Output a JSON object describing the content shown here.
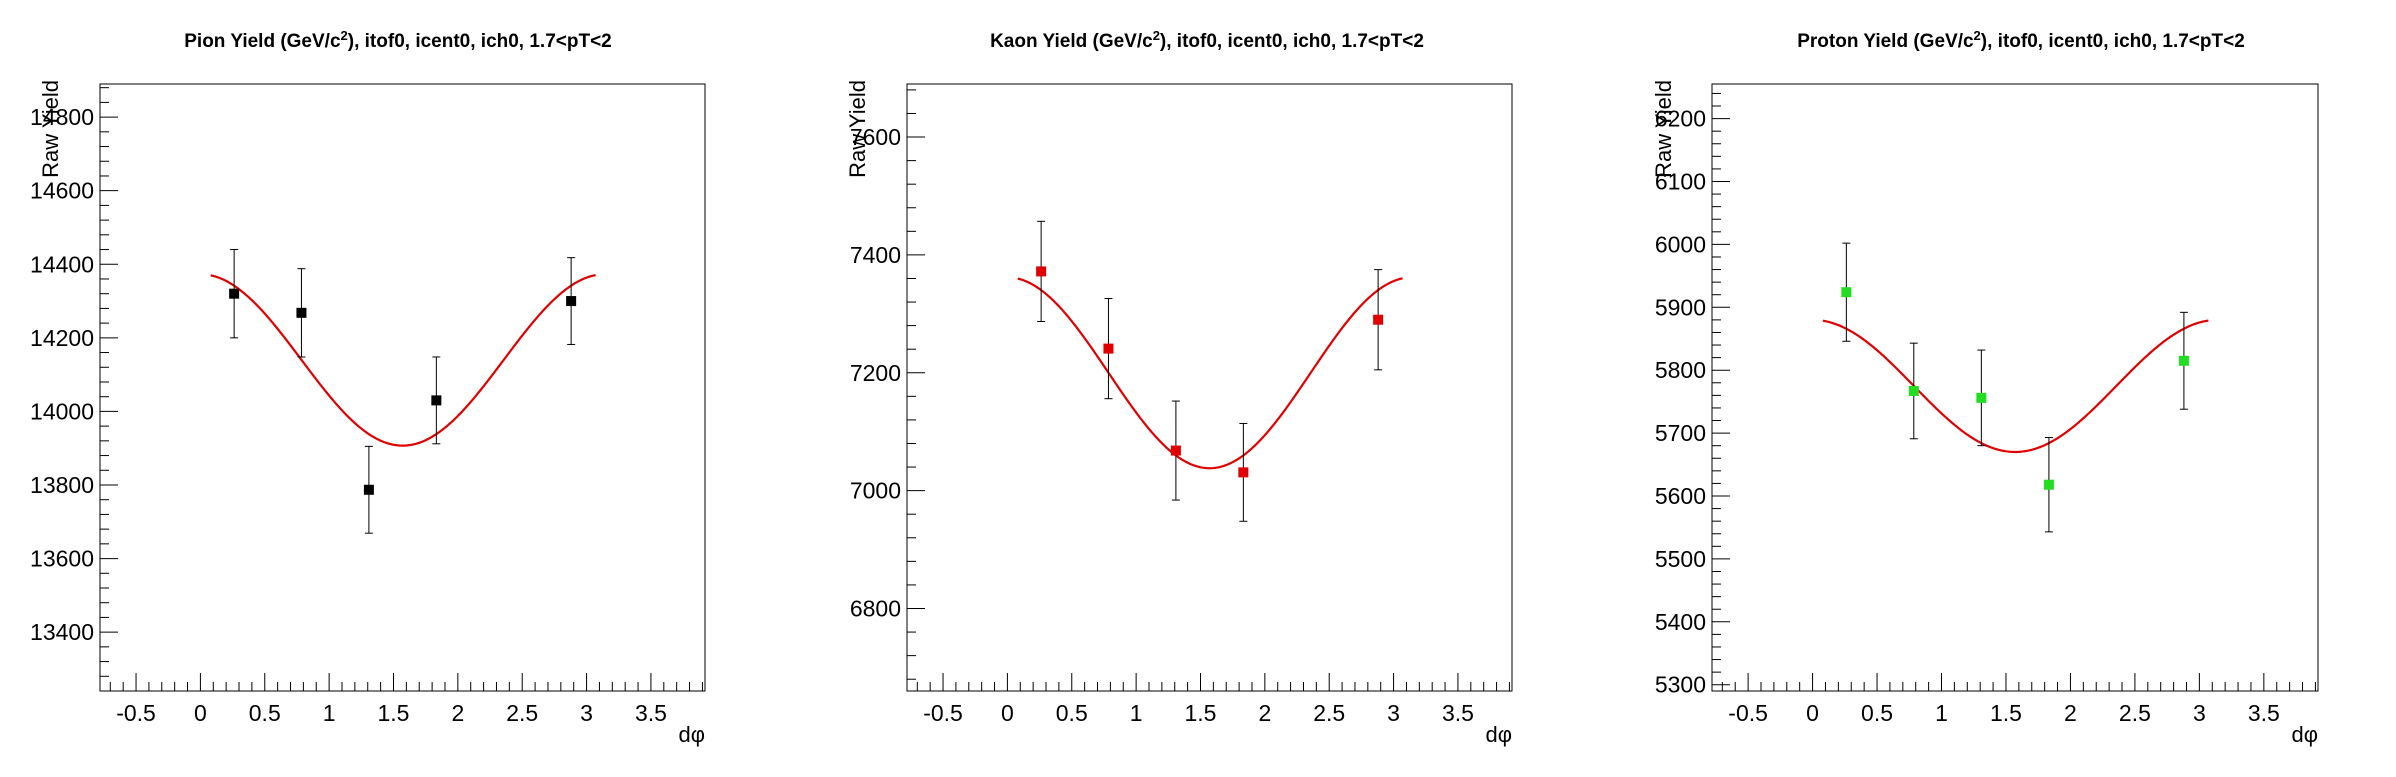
{
  "chart_data": [
    {
      "type": "scatter",
      "title_prefix": "Pion Yield (GeV/c",
      "title_sup": "2",
      "title_suffix": "), itof0, icent0, ich0, 1.7<pT<2",
      "xlabel": "dφ",
      "ylabel": "Raw Yield",
      "xlim": [
        -0.78,
        3.92
      ],
      "ylim": [
        13240,
        14890
      ],
      "xticks": [
        "-0.5",
        "0",
        "0.5",
        "1",
        "1.5",
        "2",
        "2.5",
        "3",
        "3.5"
      ],
      "yticks": [
        "13400",
        "13600",
        "13800",
        "14000",
        "14200",
        "14400",
        "14600",
        "14800"
      ],
      "marker_color": "#000000",
      "fit_color": "#e00000",
      "points": [
        {
          "x": 0.262,
          "y": 14320,
          "err": 120
        },
        {
          "x": 0.785,
          "y": 14268,
          "err": 120
        },
        {
          "x": 1.309,
          "y": 13787,
          "err": 118
        },
        {
          "x": 1.833,
          "y": 14030,
          "err": 118
        },
        {
          "x": 2.88,
          "y": 14300,
          "err": 118
        }
      ],
      "fit": {
        "a": 14140,
        "b": 233,
        "xmin": 0.08,
        "xmax": 3.07
      }
    },
    {
      "type": "scatter",
      "title_prefix": "Kaon Yield (GeV/c",
      "title_sup": "2",
      "title_suffix": "), itof0, icent0, ich0, 1.7<pT<2",
      "xlabel": "dφ",
      "ylabel": "Raw Yield",
      "xlim": [
        -0.78,
        3.92
      ],
      "ylim": [
        6660,
        7690
      ],
      "xticks": [
        "-0.5",
        "0",
        "0.5",
        "1",
        "1.5",
        "2",
        "2.5",
        "3",
        "3.5"
      ],
      "yticks": [
        "6800",
        "7000",
        "7200",
        "7400",
        "7600"
      ],
      "marker_color": "#e00000",
      "fit_color": "#e00000",
      "points": [
        {
          "x": 0.262,
          "y": 7372,
          "err": 85
        },
        {
          "x": 0.785,
          "y": 7241,
          "err": 85
        },
        {
          "x": 1.309,
          "y": 7068,
          "err": 84
        },
        {
          "x": 1.833,
          "y": 7031,
          "err": 83
        },
        {
          "x": 2.88,
          "y": 7290,
          "err": 85
        }
      ],
      "fit": {
        "a": 7200,
        "b": 162,
        "xmin": 0.08,
        "xmax": 3.07
      }
    },
    {
      "type": "scatter",
      "title_prefix": "Proton Yield (GeV/c",
      "title_sup": "2",
      "title_suffix": "), itof0, icent0, ich0, 1.7<pT<2",
      "xlabel": "dφ",
      "ylabel": "Raw Yield",
      "xlim": [
        -0.78,
        3.92
      ],
      "ylim": [
        5290,
        6255
      ],
      "xticks": [
        "-0.5",
        "0",
        "0.5",
        "1",
        "1.5",
        "2",
        "2.5",
        "3",
        "3.5"
      ],
      "yticks": [
        "5300",
        "5400",
        "5500",
        "5600",
        "5700",
        "5800",
        "5900",
        "6000",
        "6100",
        "6200"
      ],
      "marker_color": "#22dd22",
      "fit_color": "#e00000",
      "points": [
        {
          "x": 0.262,
          "y": 5924,
          "err": 78
        },
        {
          "x": 0.785,
          "y": 5767,
          "err": 76
        },
        {
          "x": 1.309,
          "y": 5756,
          "err": 76
        },
        {
          "x": 1.833,
          "y": 5618,
          "err": 75
        },
        {
          "x": 2.88,
          "y": 5815,
          "err": 77
        }
      ],
      "fit": {
        "a": 5775,
        "b": 105,
        "xmin": 0.08,
        "xmax": 3.07
      }
    }
  ]
}
